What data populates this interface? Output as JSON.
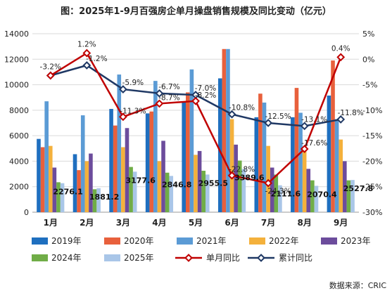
{
  "chart_data": {
    "type": "bar",
    "title": "图：2025年1-9月百强房企单月操盘销售规模及同比变动（亿元）",
    "categories": [
      "1月",
      "2月",
      "3月",
      "4月",
      "5月",
      "6月",
      "7月",
      "8月",
      "9月"
    ],
    "ylim": [
      0,
      14000
    ],
    "y_ticks": [
      "0",
      "2000",
      "4000",
      "6000",
      "8000",
      "10000",
      "12000",
      "14000"
    ],
    "y2lim": [
      -30,
      5
    ],
    "y2_ticks": [
      "-30%",
      "-25%",
      "-20%",
      "-15%",
      "-10%",
      "-5%",
      "0%",
      "5%"
    ],
    "grid": true,
    "legend_position": "bottom",
    "series": [
      {
        "name": "2019年",
        "type": "bar",
        "color": "#1f6fbf",
        "values": [
          5750,
          4550,
          8100,
          7750,
          8600,
          10500,
          7450,
          7450,
          9150
        ]
      },
      {
        "name": "2020年",
        "type": "bar",
        "color": "#e8603c",
        "values": [
          5100,
          3300,
          6800,
          7900,
          9400,
          12800,
          9300,
          9750,
          11900
        ]
      },
      {
        "name": "2021年",
        "type": "bar",
        "color": "#5b9bd5",
        "values": [
          8700,
          7600,
          10800,
          10300,
          11200,
          12800,
          8600,
          7800,
          7300
        ]
      },
      {
        "name": "2022年",
        "type": "bar",
        "color": "#f4b13c",
        "values": [
          5200,
          4000,
          5100,
          4000,
          4500,
          7300,
          5200,
          4800,
          5700
        ]
      },
      {
        "name": "2023年",
        "type": "bar",
        "color": "#6c4c9c",
        "values": [
          3500,
          4600,
          6600,
          5600,
          4800,
          5300,
          3500,
          3400,
          4000
        ]
      },
      {
        "name": "2024年",
        "type": "bar",
        "color": "#70ad47",
        "values": [
          2350,
          1800,
          3550,
          3100,
          3250,
          4050,
          2950,
          2500,
          2500
        ]
      },
      {
        "name": "2025年",
        "type": "bar",
        "color": "#a9c6e8",
        "values": [
          2276.1,
          1881.2,
          3177.6,
          2846.8,
          2955.5,
          3389.6,
          2111.6,
          2070.4,
          2527.8
        ]
      },
      {
        "name": "单月同比",
        "type": "line",
        "axis": "right",
        "color": "#c00000",
        "marker": "diamond",
        "values": [
          -3.2,
          1.2,
          -11.3,
          -8.7,
          -8.2,
          -22.8,
          -24.3,
          -17.6,
          0.4
        ]
      },
      {
        "name": "累计同比",
        "type": "line",
        "axis": "right",
        "color": "#1f3864",
        "marker": "diamond",
        "values": [
          -3.2,
          -1.2,
          -5.9,
          -6.7,
          -7.0,
          -10.8,
          -12.5,
          -13.1,
          -11.8
        ]
      }
    ],
    "bar_labels": [
      "2276.1",
      "1881.2",
      "3177.6",
      "2846.8",
      "2955.5",
      "3389.6",
      "2111.6",
      "2070.4",
      "2527.8"
    ],
    "monthly_labels": [
      "-3.2%",
      "1.2%",
      "-11.3%",
      "-8.7%",
      "-8.2%",
      "-22.8%",
      "-24.3%",
      "-17.6%",
      "0.4%"
    ],
    "cumulative_labels": [
      "",
      "-1.2%",
      "-5.9%",
      "-6.7%",
      "-7.0%",
      "-10.8%",
      "-12.5%",
      "-13.1%",
      "-11.8%"
    ]
  },
  "source_text": "数据来源：CRIC"
}
